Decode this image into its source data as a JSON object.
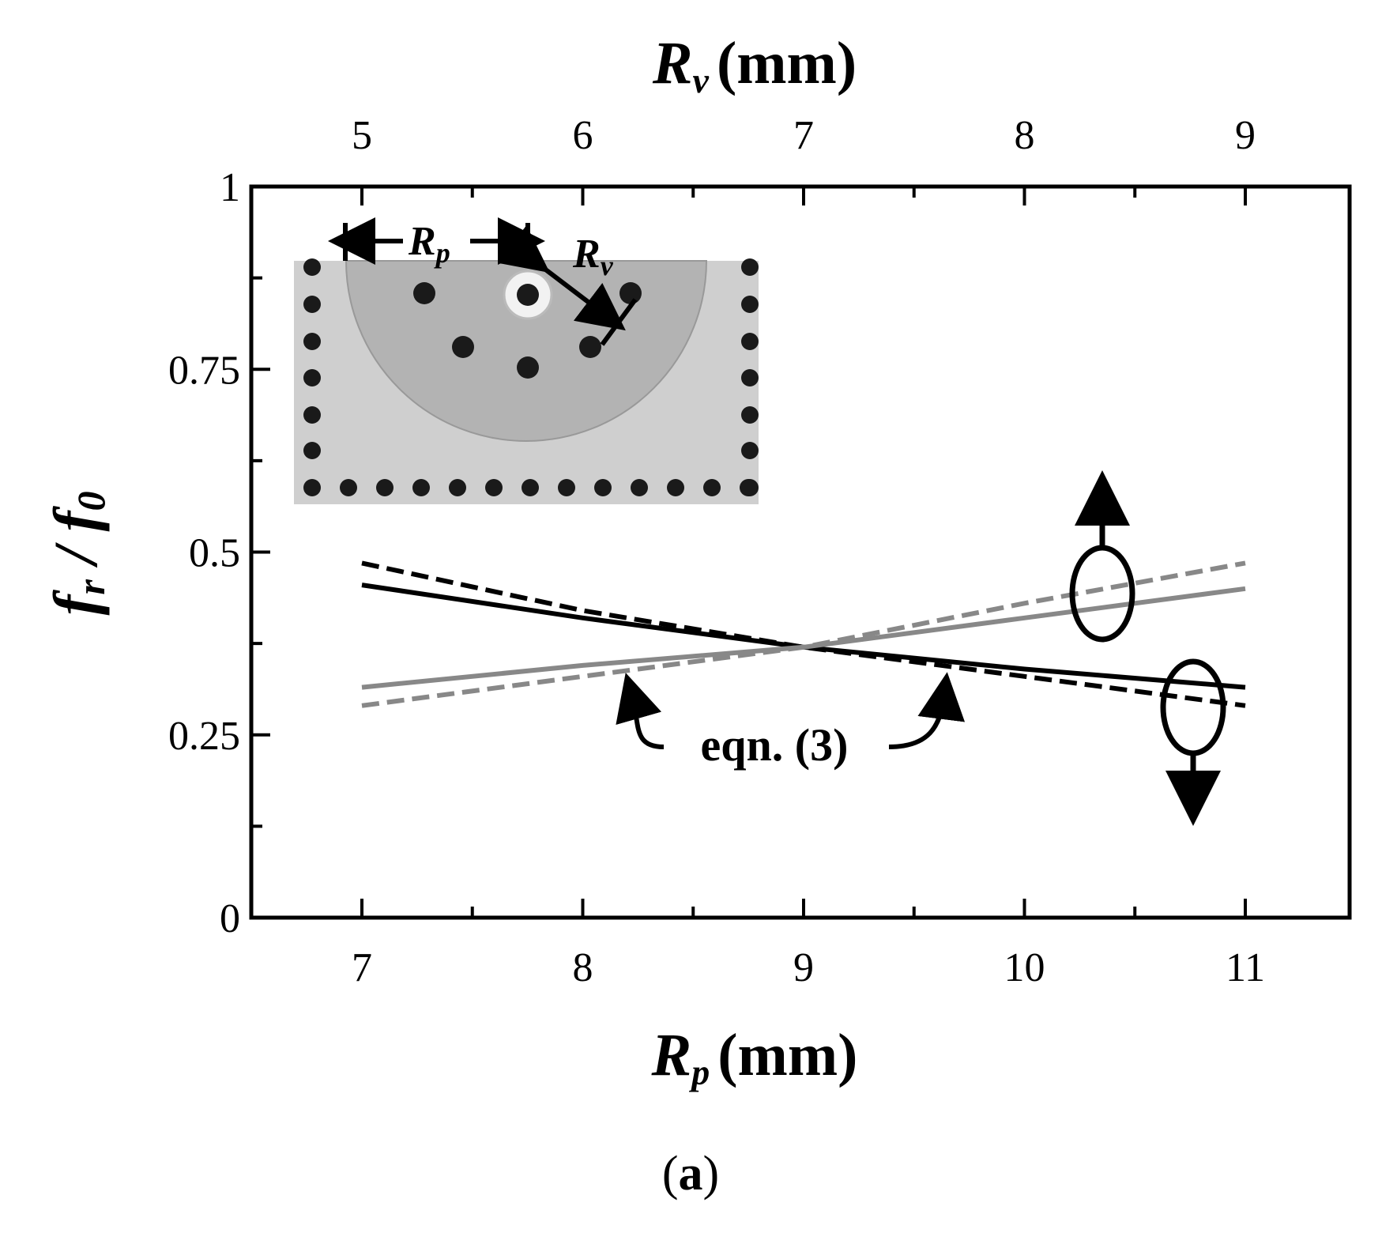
{
  "chart_data": {
    "type": "line",
    "title": "",
    "x_bottom": {
      "var": "R",
      "sub": "p",
      "unit": "(mm)",
      "range": [
        6.5,
        11.5
      ],
      "ticks": [
        7,
        8,
        9,
        10,
        11
      ],
      "tick_labels": [
        "7",
        "8",
        "9",
        "10",
        "11"
      ]
    },
    "x_top": {
      "var": "R",
      "sub": "v",
      "unit": "(mm)",
      "ticks": [
        5,
        6,
        7,
        8,
        9
      ],
      "tick_labels": [
        "5",
        "6",
        "7",
        "8",
        "9"
      ]
    },
    "y_axis": {
      "label_f": "f",
      "label_r": "r",
      "label_slash": " / ",
      "label_0": "0",
      "range": [
        0,
        1
      ],
      "ticks": [
        0,
        0.25,
        0.5,
        0.75,
        1
      ],
      "tick_labels": [
        "0",
        "0.25",
        "0.5",
        "0.75",
        "1"
      ]
    },
    "grid": false,
    "series": [
      {
        "axis": "bottom",
        "style": "solid",
        "color": "#000000",
        "x": [
          7,
          8,
          9,
          10,
          11
        ],
        "y": [
          0.455,
          0.41,
          0.37,
          0.34,
          0.315
        ]
      },
      {
        "axis": "bottom",
        "style": "dashed",
        "color": "#000000",
        "x": [
          7,
          8,
          9,
          10,
          11
        ],
        "y": [
          0.485,
          0.42,
          0.37,
          0.33,
          0.29
        ]
      },
      {
        "axis": "top",
        "style": "solid",
        "color": "#888888",
        "x": [
          5,
          6,
          7,
          8,
          9
        ],
        "y": [
          0.315,
          0.345,
          0.37,
          0.41,
          0.45
        ]
      },
      {
        "axis": "top",
        "style": "dashed",
        "color": "#888888",
        "x": [
          5,
          6,
          7,
          8,
          9
        ],
        "y": [
          0.29,
          0.33,
          0.37,
          0.43,
          0.485
        ]
      }
    ],
    "annotation": "eqn. (3)",
    "inset_labels": {
      "rp_var": "R",
      "rp_sub": "p",
      "rv_var": "R",
      "rv_sub": "v"
    }
  },
  "panel_label": {
    "open": "(",
    "letter": "a",
    "close": ")"
  }
}
